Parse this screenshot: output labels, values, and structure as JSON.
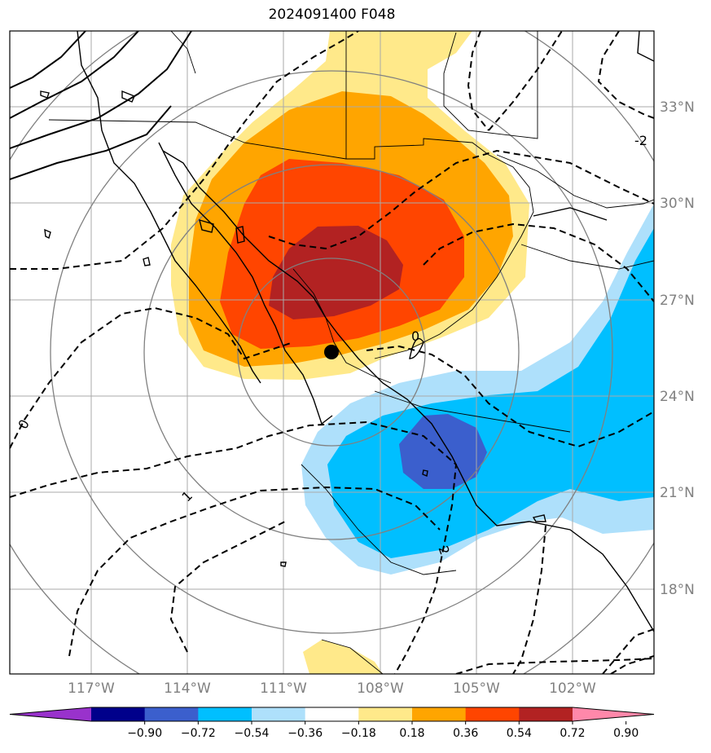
{
  "title": "2024091400 F048",
  "map": {
    "lat_labels": [
      "33°N",
      "30°N",
      "27°N",
      "24°N",
      "21°N",
      "18°N"
    ],
    "lon_labels": [
      "117°W",
      "114°W",
      "111°W",
      "108°W",
      "105°W",
      "102°W"
    ],
    "contour_labels": [
      "-2",
      "0",
      "0",
      "1",
      "2"
    ],
    "center_marker": {
      "lat": 25.4,
      "lon": -109.4
    },
    "grid": true
  },
  "colorbar": {
    "ticks": [
      "−0.90",
      "−0.72",
      "−0.54",
      "−0.36",
      "−0.18",
      "0.18",
      "0.36",
      "0.54",
      "0.72",
      "0.90"
    ],
    "colors": [
      "#9932cc",
      "#00008b",
      "#3b5fcd",
      "#00bfff",
      "#aee0fb",
      "#ffffff",
      "#ffe98a",
      "#ffa500",
      "#ff4500",
      "#b22222",
      "#ff88aa"
    ]
  }
}
